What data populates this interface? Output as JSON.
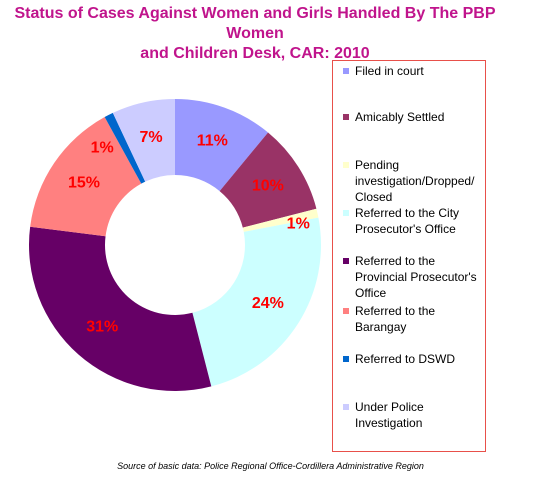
{
  "chart_data": {
    "type": "pie",
    "title_lines": [
      "Status of Cases Against Women and Girls Handled By The PBP Women",
      "and Children Desk, CAR: 2010"
    ],
    "categories": [
      "Filed in court",
      "Amicably Settled",
      "Pending investigation/Dropped/ Closed",
      "Referred to the City Prosecutor's Office",
      "Referred to the Provincial Prosecutor's Office",
      "Referred to the Barangay",
      "Referred to DSWD",
      "Under Police Investigation"
    ],
    "values": [
      11,
      10,
      1,
      24,
      31,
      15,
      1,
      7
    ],
    "data_labels": [
      "11%",
      "10%",
      "1%",
      "24%",
      "31%",
      "15%",
      "1%",
      "7%"
    ],
    "colors": [
      "#9999ff",
      "#993366",
      "#ffffcc",
      "#ccffff",
      "#660066",
      "#ff8080",
      "#0066cc",
      "#ccccff"
    ],
    "label_color": "#ff0000",
    "hole": true,
    "legend_position": "right"
  },
  "source_note": "Source of basic data: Police Regional Office-Cordillera Administrative Region"
}
